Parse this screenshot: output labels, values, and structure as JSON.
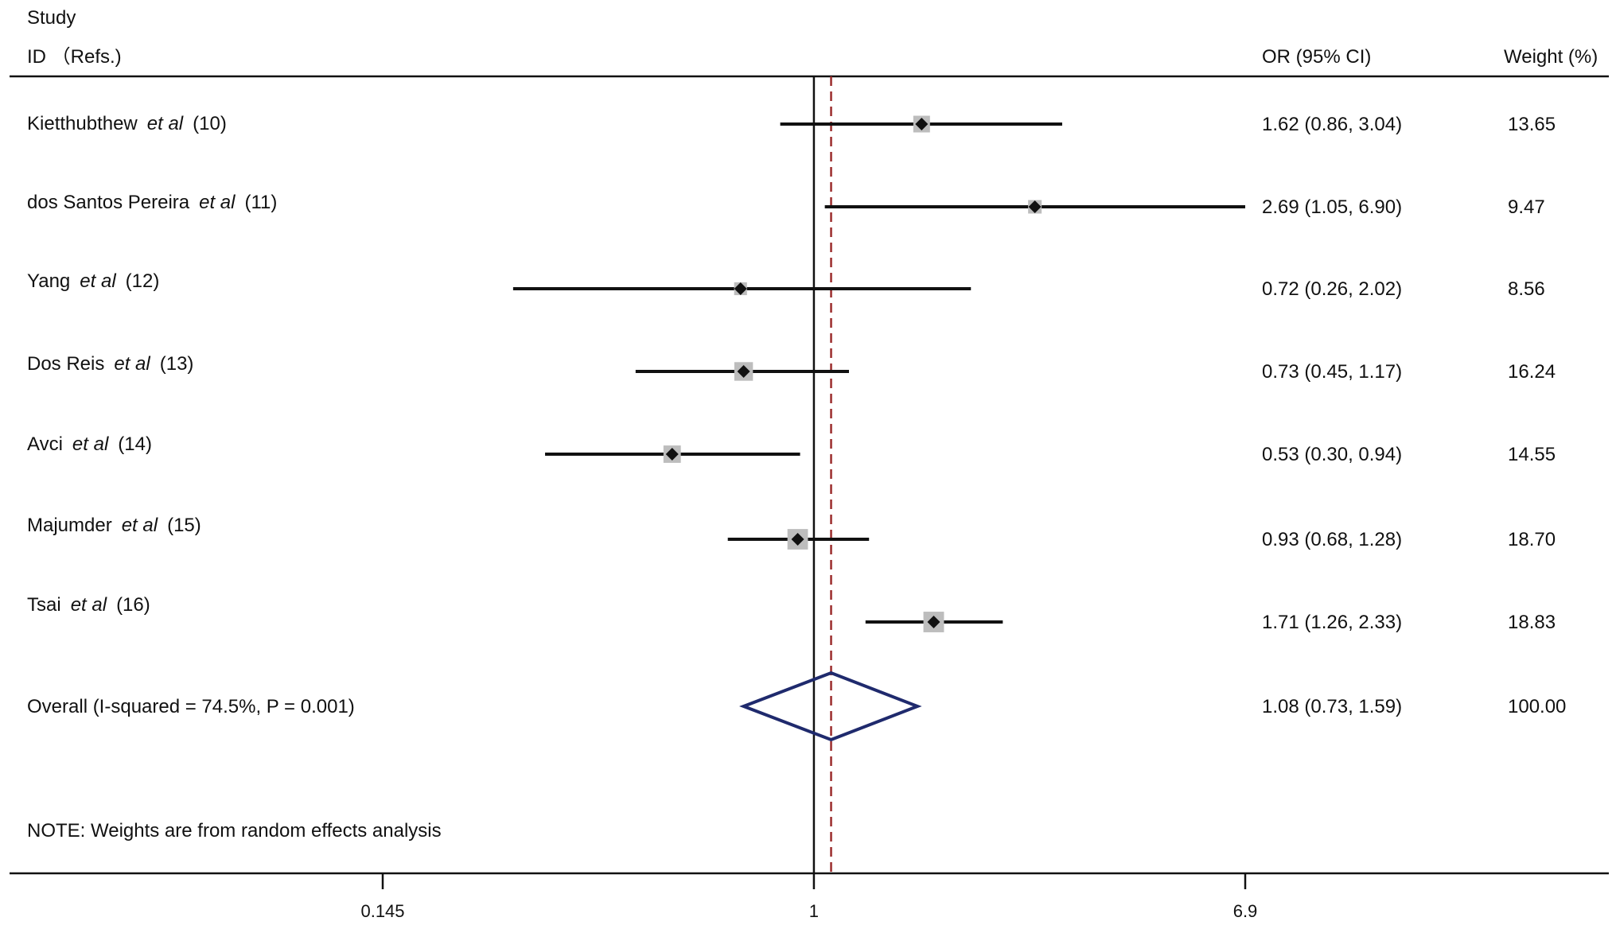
{
  "chart_data": {
    "type": "forest",
    "headers": {
      "study_line1": "Study",
      "study_line2": "ID （Refs.)",
      "estimate": "OR (95% CI)",
      "weight": "Weight (%)"
    },
    "studies": [
      {
        "name": "Kietthubthew",
        "etal": "et al",
        "ref": "(10)",
        "or": 1.62,
        "lo": 0.86,
        "hi": 3.04,
        "ci_text": "1.62 (0.86, 3.04)",
        "weight": 13.65,
        "weight_text": "13.65"
      },
      {
        "name": "dos Santos Pereira",
        "etal": "et al",
        "ref": "(11)",
        "or": 2.69,
        "lo": 1.05,
        "hi": 6.9,
        "ci_text": "2.69 (1.05, 6.90)",
        "weight": 9.47,
        "weight_text": "9.47"
      },
      {
        "name": "Yang",
        "etal": "et al",
        "ref": "(12)",
        "or": 0.72,
        "lo": 0.26,
        "hi": 2.02,
        "ci_text": "0.72 (0.26, 2.02)",
        "weight": 8.56,
        "weight_text": "8.56"
      },
      {
        "name": "Dos Reis",
        "etal": "et al",
        "ref": "(13)",
        "or": 0.73,
        "lo": 0.45,
        "hi": 1.17,
        "ci_text": "0.73 (0.45, 1.17)",
        "weight": 16.24,
        "weight_text": "16.24"
      },
      {
        "name": "Avci",
        "etal": "et al",
        "ref": "(14)",
        "or": 0.53,
        "lo": 0.3,
        "hi": 0.94,
        "ci_text": "0.53 (0.30, 0.94)",
        "weight": 14.55,
        "weight_text": "14.55"
      },
      {
        "name": "Majumder",
        "etal": "et al",
        "ref": "(15)",
        "or": 0.93,
        "lo": 0.68,
        "hi": 1.28,
        "ci_text": "0.93 (0.68, 1.28)",
        "weight": 18.7,
        "weight_text": "18.70"
      },
      {
        "name": "Tsai",
        "etal": "et al",
        "ref": "(16)",
        "or": 1.71,
        "lo": 1.26,
        "hi": 2.33,
        "ci_text": "1.71 (1.26, 2.33)",
        "weight": 18.83,
        "weight_text": "18.83"
      }
    ],
    "overall": {
      "label": "Overall (I-squared = 74.5%, P = 0.001)",
      "or": 1.08,
      "lo": 0.73,
      "hi": 1.59,
      "ci_text": "1.08 (0.73, 1.59)",
      "weight_text": "100.00"
    },
    "note": "NOTE: Weights are from random effects analysis",
    "x_axis": {
      "scale": "log",
      "ticks": [
        0.145,
        1,
        6.9
      ],
      "tick_labels": [
        "0.145",
        "1",
        "6.9"
      ],
      "xlim": [
        0.145,
        6.9
      ]
    },
    "colors": {
      "box": "#bdbdbd",
      "line": "#111111",
      "diamond": "#1f2a6d",
      "pooled_line": "#9b2c2c"
    }
  }
}
